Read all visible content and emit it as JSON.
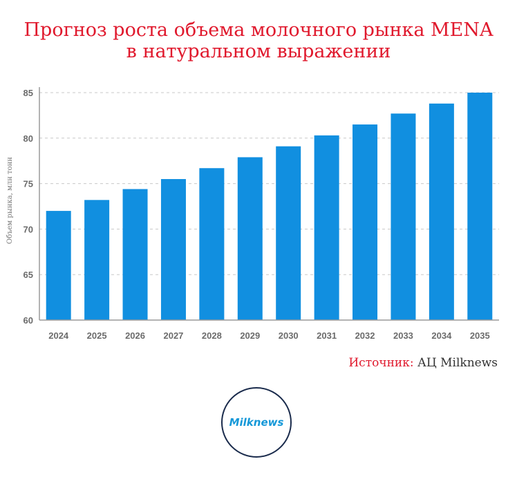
{
  "header": {
    "title_line1": "Прогноз роста объема молочного рынка MENA",
    "title_line2": "в натуральном выражении"
  },
  "chart_data": {
    "type": "bar",
    "categories": [
      "2024",
      "2025",
      "2026",
      "2027",
      "2028",
      "2029",
      "2030",
      "2031",
      "2032",
      "2033",
      "2034",
      "2035"
    ],
    "values": [
      72.0,
      73.2,
      74.4,
      75.5,
      76.7,
      77.9,
      79.1,
      80.3,
      81.5,
      82.7,
      83.8,
      85.0
    ],
    "ylabel": "Объем рынка, млн тонн",
    "xlabel": "",
    "ylim": [
      60,
      85
    ],
    "yticks": [
      60,
      65,
      70,
      75,
      80,
      85
    ],
    "grid": true,
    "bar_color": "#118fe0"
  },
  "source": {
    "label": "Источник:",
    "value": "АЦ Milknews"
  },
  "logo": {
    "text": "Milknews"
  },
  "colors": {
    "title": "#e0192d",
    "bars": "#118fe0",
    "logo_ring": "#1a2b4c",
    "logo_text": "#1598d8"
  }
}
